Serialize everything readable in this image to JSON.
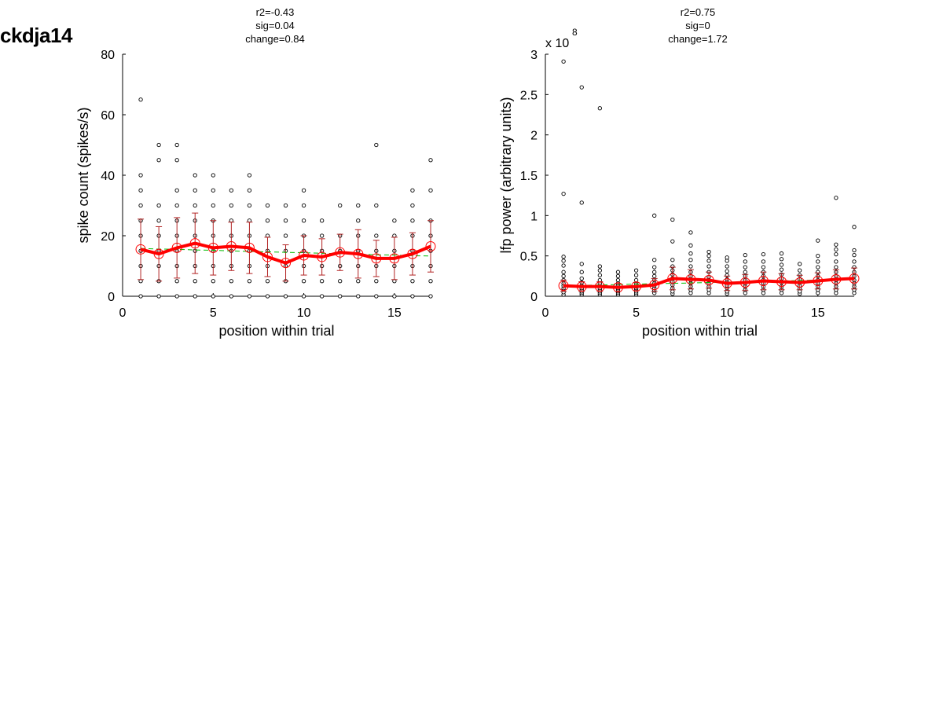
{
  "figure_title": "ckdja14",
  "colors": {
    "mean": "#ff0000",
    "errorbar": "#b22222",
    "fit": "#00bb00",
    "points": "#000000"
  },
  "chart_data": [
    {
      "type": "scatter",
      "annotations": [
        "r2=-0.43",
        "sig=0.04",
        "change=0.84"
      ],
      "xlabel": "position within trial",
      "ylabel": "spike count (spikes/s)",
      "xlim": [
        0,
        17
      ],
      "ylim": [
        0,
        80
      ],
      "xticks": [
        0,
        5,
        10,
        15
      ],
      "yticks": [
        0,
        20,
        40,
        60,
        80
      ],
      "exponent_label": "",
      "x": [
        1,
        2,
        3,
        4,
        5,
        6,
        7,
        8,
        9,
        10,
        11,
        12,
        13,
        14,
        15,
        16,
        17
      ],
      "scatter_points": [
        [
          0,
          5,
          10,
          15,
          20,
          25,
          30,
          35,
          40,
          65
        ],
        [
          0,
          5,
          10,
          15,
          20,
          25,
          30,
          45,
          50
        ],
        [
          0,
          5,
          10,
          15,
          20,
          25,
          30,
          35,
          45,
          50
        ],
        [
          0,
          5,
          10,
          15,
          20,
          25,
          30,
          35,
          40
        ],
        [
          0,
          5,
          10,
          15,
          20,
          25,
          30,
          35,
          40
        ],
        [
          0,
          5,
          10,
          15,
          20,
          25,
          30,
          35
        ],
        [
          0,
          5,
          10,
          15,
          20,
          25,
          30,
          35,
          40
        ],
        [
          0,
          5,
          10,
          15,
          20,
          25,
          30
        ],
        [
          0,
          5,
          10,
          15,
          20,
          25,
          30
        ],
        [
          0,
          5,
          10,
          15,
          20,
          25,
          30,
          35
        ],
        [
          0,
          5,
          10,
          15,
          20,
          25
        ],
        [
          0,
          5,
          10,
          15,
          20,
          30
        ],
        [
          0,
          5,
          10,
          15,
          20,
          25,
          30
        ],
        [
          0,
          5,
          10,
          15,
          20,
          30,
          50
        ],
        [
          0,
          5,
          10,
          15,
          20,
          25
        ],
        [
          0,
          5,
          10,
          15,
          20,
          25,
          30,
          35
        ],
        [
          0,
          5,
          10,
          15,
          20,
          25,
          35,
          45
        ]
      ],
      "mean": [
        15.5,
        14,
        16,
        17.5,
        16,
        16.5,
        16,
        13,
        11,
        13.5,
        13,
        14.5,
        14,
        12.5,
        12.5,
        14,
        16.5
      ],
      "error": [
        10,
        9,
        10,
        10,
        9,
        8,
        8.5,
        6.5,
        6,
        6.5,
        6,
        6,
        8,
        6,
        7,
        7,
        8.5
      ],
      "fit": [
        15.8,
        15.6,
        15.5,
        15.3,
        15.2,
        15.0,
        14.8,
        14.7,
        14.5,
        14.4,
        14.2,
        14.1,
        13.9,
        13.7,
        13.6,
        13.4,
        13.3
      ]
    },
    {
      "type": "scatter",
      "annotations": [
        "r2=0.75",
        "sig=0",
        "change=1.72"
      ],
      "xlabel": "position within trial",
      "ylabel": "lfp power (arbitrary units)",
      "xlim": [
        0,
        17
      ],
      "ylim": [
        0,
        3
      ],
      "xticks": [
        0,
        5,
        10,
        15
      ],
      "yticks": [
        0,
        0.5,
        1,
        1.5,
        2,
        2.5,
        3
      ],
      "ytick_labels": [
        "0",
        "0.5",
        "1",
        "1.5",
        "2",
        "2.5",
        "3"
      ],
      "exponent_label": "x 10",
      "exponent_value": "8",
      "x": [
        1,
        2,
        3,
        4,
        5,
        6,
        7,
        8,
        9,
        10,
        11,
        12,
        13,
        14,
        15,
        16,
        17
      ],
      "scatter_points": [
        [
          0.02,
          0.05,
          0.08,
          0.1,
          0.13,
          0.16,
          0.2,
          0.25,
          0.3,
          0.38,
          0.44,
          0.49,
          1.27,
          2.91
        ],
        [
          0.02,
          0.04,
          0.06,
          0.08,
          0.1,
          0.13,
          0.17,
          0.22,
          0.3,
          0.4,
          1.16,
          2.59
        ],
        [
          0.02,
          0.04,
          0.06,
          0.08,
          0.1,
          0.13,
          0.16,
          0.2,
          0.26,
          0.32,
          0.37,
          2.33
        ],
        [
          0.02,
          0.04,
          0.06,
          0.08,
          0.1,
          0.13,
          0.16,
          0.2,
          0.25,
          0.3
        ],
        [
          0.02,
          0.04,
          0.06,
          0.08,
          0.1,
          0.12,
          0.15,
          0.2,
          0.26,
          0.32
        ],
        [
          0.04,
          0.07,
          0.1,
          0.13,
          0.16,
          0.2,
          0.25,
          0.3,
          0.36,
          0.45,
          1.0
        ],
        [
          0.03,
          0.06,
          0.1,
          0.14,
          0.18,
          0.22,
          0.27,
          0.32,
          0.37,
          0.45,
          0.68,
          0.95
        ],
        [
          0.04,
          0.08,
          0.12,
          0.16,
          0.2,
          0.25,
          0.3,
          0.37,
          0.45,
          0.53,
          0.63,
          0.79
        ],
        [
          0.04,
          0.08,
          0.12,
          0.16,
          0.2,
          0.24,
          0.3,
          0.37,
          0.44,
          0.5,
          0.55
        ],
        [
          0.03,
          0.06,
          0.1,
          0.13,
          0.17,
          0.21,
          0.26,
          0.31,
          0.37,
          0.44,
          0.48
        ],
        [
          0.04,
          0.08,
          0.12,
          0.16,
          0.2,
          0.25,
          0.3,
          0.36,
          0.43,
          0.51
        ],
        [
          0.04,
          0.08,
          0.12,
          0.16,
          0.2,
          0.25,
          0.3,
          0.36,
          0.43,
          0.52
        ],
        [
          0.04,
          0.08,
          0.12,
          0.17,
          0.22,
          0.27,
          0.33,
          0.39,
          0.46,
          0.53
        ],
        [
          0.03,
          0.06,
          0.1,
          0.13,
          0.17,
          0.21,
          0.26,
          0.32,
          0.4
        ],
        [
          0.04,
          0.08,
          0.12,
          0.16,
          0.2,
          0.25,
          0.3,
          0.36,
          0.43,
          0.5,
          0.69
        ],
        [
          0.04,
          0.08,
          0.12,
          0.16,
          0.2,
          0.25,
          0.3,
          0.36,
          0.43,
          0.52,
          0.58,
          0.64,
          1.22
        ],
        [
          0.04,
          0.08,
          0.12,
          0.16,
          0.2,
          0.25,
          0.3,
          0.36,
          0.43,
          0.51,
          0.57,
          0.86
        ]
      ],
      "mean": [
        0.13,
        0.12,
        0.12,
        0.11,
        0.12,
        0.14,
        0.22,
        0.21,
        0.2,
        0.16,
        0.17,
        0.19,
        0.18,
        0.17,
        0.19,
        0.21,
        0.22
      ],
      "error": [
        0.07,
        0.06,
        0.06,
        0.05,
        0.05,
        0.08,
        0.14,
        0.12,
        0.1,
        0.09,
        0.1,
        0.11,
        0.1,
        0.09,
        0.1,
        0.12,
        0.13
      ],
      "fit": [
        0.13,
        0.135,
        0.14,
        0.145,
        0.15,
        0.155,
        0.16,
        0.165,
        0.17,
        0.175,
        0.18,
        0.185,
        0.19,
        0.195,
        0.2,
        0.205,
        0.21
      ]
    }
  ]
}
